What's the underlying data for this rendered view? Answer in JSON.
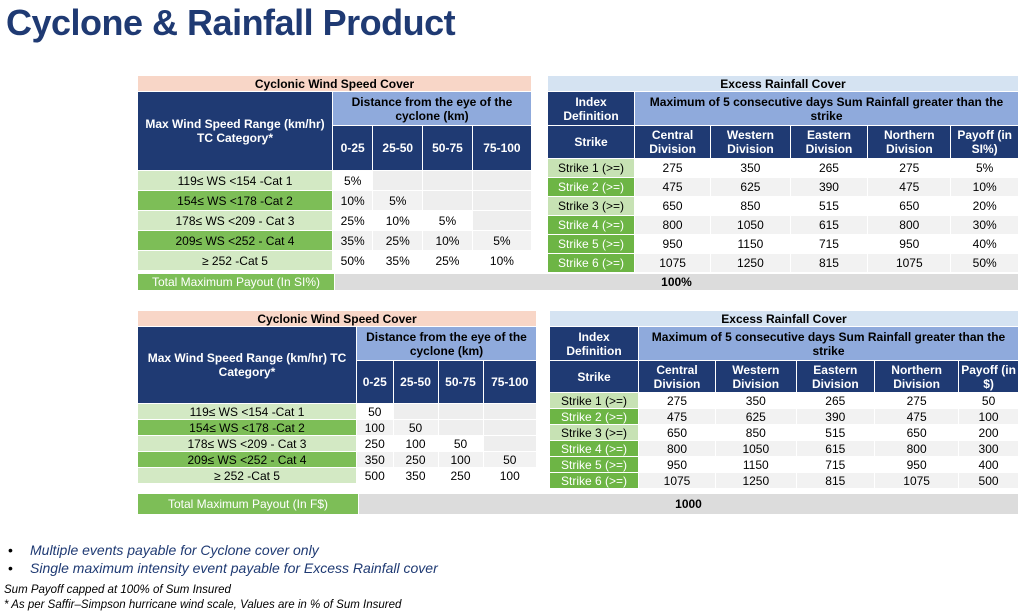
{
  "title": "Cyclone & Rainfall Product",
  "wind": {
    "caption": "Cyclonic Wind Speed Cover",
    "range_header": "Max Wind Speed Range (km/hr) TC Category*",
    "distance_header": "Distance from the eye of the cyclone (km)",
    "bands": [
      "0-25",
      "25-50",
      "50-75",
      "75-100"
    ]
  },
  "rain": {
    "caption": "Excess Rainfall Cover",
    "index_header": "Index Definition",
    "max_header": "Maximum of 5 consecutive days Sum Rainfall greater than the strike",
    "strike_header": "Strike",
    "cols": [
      "Central Division",
      "Western Division",
      "Eastern Division",
      "Northern Division"
    ]
  },
  "table1": {
    "payoff_header": "Payoff (in SI%)",
    "wind_rows": [
      {
        "cat": "119≤ WS <154 -Cat 1",
        "v": [
          "5%",
          "",
          "",
          ""
        ]
      },
      {
        "cat": "154≤ WS <178 -Cat 2",
        "v": [
          "10%",
          "5%",
          "",
          ""
        ]
      },
      {
        "cat": "178≤ WS <209 - Cat 3",
        "v": [
          "25%",
          "10%",
          "5%",
          ""
        ]
      },
      {
        "cat": "209≤ WS <252 - Cat 4",
        "v": [
          "35%",
          "25%",
          "10%",
          "5%"
        ]
      },
      {
        "cat": "≥ 252 -Cat 5",
        "v": [
          "50%",
          "35%",
          "25%",
          "10%"
        ]
      }
    ],
    "rain_rows": [
      {
        "s": "Strike 1 (>=)",
        "v": [
          "275",
          "350",
          "265",
          "275",
          "5%"
        ]
      },
      {
        "s": "Strike 2 (>=)",
        "v": [
          "475",
          "625",
          "390",
          "475",
          "10%"
        ]
      },
      {
        "s": "Strike 3 (>=)",
        "v": [
          "650",
          "850",
          "515",
          "650",
          "20%"
        ]
      },
      {
        "s": "Strike 4 (>=)",
        "v": [
          "800",
          "1050",
          "615",
          "800",
          "30%"
        ]
      },
      {
        "s": "Strike 5 (>=)",
        "v": [
          "950",
          "1150",
          "715",
          "950",
          "40%"
        ]
      },
      {
        "s": "Strike 6 (>=)",
        "v": [
          "1075",
          "1250",
          "815",
          "1075",
          "50%"
        ]
      }
    ],
    "total_label": "Total Maximum Payout (In SI%)",
    "total_value": "100%"
  },
  "table2": {
    "payoff_header": "Payoff (in $)",
    "wind_rows": [
      {
        "cat": "119≤ WS <154 -Cat 1",
        "v": [
          "50",
          "",
          "",
          ""
        ]
      },
      {
        "cat": "154≤ WS <178 -Cat 2",
        "v": [
          "100",
          "50",
          "",
          ""
        ]
      },
      {
        "cat": "178≤ WS <209 - Cat 3",
        "v": [
          "250",
          "100",
          "50",
          ""
        ]
      },
      {
        "cat": "209≤ WS <252 - Cat 4",
        "v": [
          "350",
          "250",
          "100",
          "50"
        ]
      },
      {
        "cat": "≥ 252 -Cat 5",
        "v": [
          "500",
          "350",
          "250",
          "100"
        ]
      }
    ],
    "rain_rows": [
      {
        "s": "Strike 1 (>=)",
        "v": [
          "275",
          "350",
          "265",
          "275",
          "50"
        ]
      },
      {
        "s": "Strike 2 (>=)",
        "v": [
          "475",
          "625",
          "390",
          "475",
          "100"
        ]
      },
      {
        "s": "Strike 3 (>=)",
        "v": [
          "650",
          "850",
          "515",
          "650",
          "200"
        ]
      },
      {
        "s": "Strike 4 (>=)",
        "v": [
          "800",
          "1050",
          "615",
          "800",
          "300"
        ]
      },
      {
        "s": "Strike 5 (>=)",
        "v": [
          "950",
          "1150",
          "715",
          "950",
          "400"
        ]
      },
      {
        "s": "Strike 6 (>=)",
        "v": [
          "1075",
          "1250",
          "815",
          "1075",
          "500"
        ]
      }
    ],
    "total_label": "Total Maximum Payout (In F$)",
    "total_value": "1000"
  },
  "notes": {
    "bullet1": "Multiple events payable for Cyclone cover only",
    "bullet2": "Single maximum intensity event payable for Excess Rainfall cover",
    "footnote1": "Sum Payoff capped at 100% of Sum Insured",
    "footnote2": "* As per Saffir–Simpson hurricane wind scale, Values are in % of Sum Insured"
  }
}
